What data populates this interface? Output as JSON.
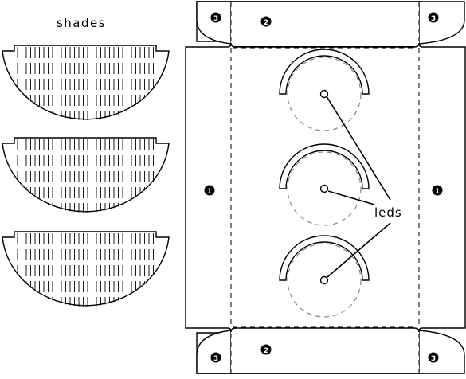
{
  "labels": {
    "shades": "shades",
    "leds": "leds"
  },
  "markers": {
    "side_tab": "1",
    "end_flap": "2",
    "corner_flap": "3"
  },
  "colors": {
    "line": "#000000",
    "dashed_circle": "#888888",
    "background": "#ffffff"
  }
}
